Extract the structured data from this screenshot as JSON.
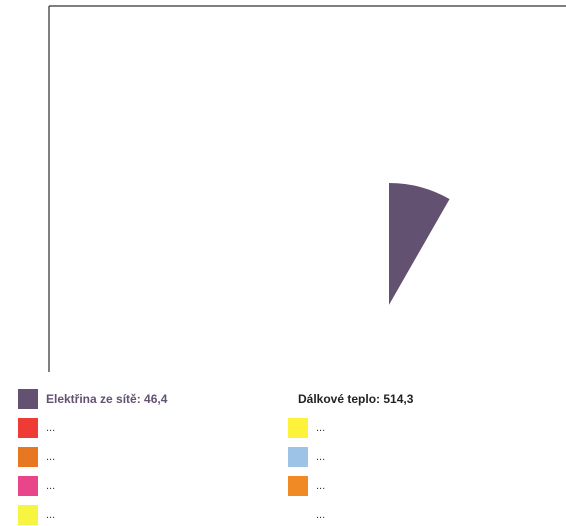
{
  "chart_data": {
    "type": "pie",
    "title": "",
    "slices": [
      {
        "label": "Elektřina ze sítě",
        "value": 46.4,
        "value_text": "46,4",
        "color": "#625170"
      },
      {
        "label": "Dálkové teplo",
        "value": 514.3,
        "value_text": "514,3",
        "color": "#ffffff"
      }
    ],
    "legend": [
      {
        "text": "Elektřina ze sítě: 46,4",
        "color": "#625170",
        "column": "left",
        "bold": true,
        "label_color": "#625170"
      },
      {
        "text": "Dálkové teplo: 514,3",
        "color": "",
        "column": "right",
        "bold": true,
        "label_color": "#222222"
      },
      {
        "text": "...",
        "color": "#ef3b36",
        "column": "left",
        "bold": false
      },
      {
        "text": "...",
        "color": "#fff23a",
        "column": "right",
        "bold": false
      },
      {
        "text": "...",
        "color": "#e87722",
        "column": "left",
        "bold": false
      },
      {
        "text": "...",
        "color": "#9dc3e6",
        "column": "right",
        "bold": false
      },
      {
        "text": "...",
        "color": "#e8458b",
        "column": "left",
        "bold": false
      },
      {
        "text": "...",
        "color": "#f08a24",
        "column": "right",
        "bold": false
      },
      {
        "text": "...",
        "color": "#f5f542",
        "column": "left",
        "bold": false
      },
      {
        "text": "...",
        "color": "",
        "column": "right",
        "bold": false
      }
    ],
    "legend_placement": "bottom"
  },
  "colors": {
    "frame": "#555555",
    "background": "#ffffff"
  }
}
